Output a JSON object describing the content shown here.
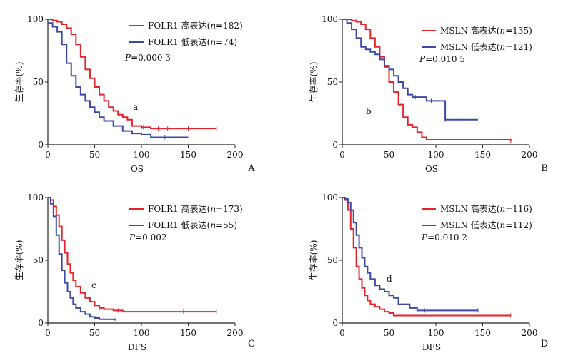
{
  "figure": {
    "colors": {
      "high": "#e8222b",
      "low": "#3c4aa6",
      "axis": "#222222"
    }
  },
  "chart_data": [
    {
      "panel": "A",
      "type": "line",
      "xlabel": "OS",
      "ylabel": "生存率(%)",
      "annotation": "a",
      "p_text": "P=0.000 3",
      "p_prefix": "P",
      "p_value": "=0.000 3",
      "xlim": [
        0,
        200
      ],
      "ylim": [
        0,
        100
      ],
      "xticks": [
        0,
        50,
        100,
        150,
        200
      ],
      "yticks": [
        0,
        50,
        100
      ],
      "series": [
        {
          "name": "FOLR1 高表达(n=182)",
          "name_prefix": "FOLR1 高表达(",
          "name_n": "n",
          "name_suffix": "=182)",
          "color": "#e8222b",
          "x": [
            0,
            5,
            10,
            15,
            20,
            25,
            30,
            35,
            40,
            45,
            50,
            55,
            60,
            65,
            70,
            75,
            80,
            85,
            90,
            100,
            110,
            180
          ],
          "y": [
            100,
            99,
            98,
            96,
            93,
            88,
            80,
            70,
            60,
            53,
            46,
            40,
            35,
            30,
            27,
            24,
            22,
            20,
            15,
            14,
            13,
            13
          ],
          "censor_x": [
            92,
            100,
            102,
            118,
            128,
            150,
            180
          ],
          "censor_y": [
            15,
            14,
            14,
            13,
            13,
            13,
            13
          ]
        },
        {
          "name": "FOLR1 低表达(n=74)",
          "name_prefix": "FOLR1 低表达(",
          "name_n": "n",
          "name_suffix": "=74)",
          "color": "#3c4aa6",
          "x": [
            0,
            5,
            10,
            15,
            20,
            25,
            30,
            35,
            40,
            45,
            50,
            55,
            60,
            70,
            80,
            90,
            100,
            110,
            150
          ],
          "y": [
            97,
            94,
            90,
            80,
            65,
            55,
            46,
            40,
            35,
            30,
            26,
            22,
            19,
            15,
            11,
            9,
            8,
            6,
            6
          ],
          "censor_x": [
            125
          ],
          "censor_y": [
            6
          ]
        }
      ]
    },
    {
      "panel": "B",
      "type": "line",
      "xlabel": "OS",
      "ylabel": "生存率(%)",
      "annotation": "b",
      "p_text": "P=0.010 5",
      "p_prefix": "P",
      "p_value": "=0.010 5",
      "xlim": [
        0,
        200
      ],
      "ylim": [
        0,
        100
      ],
      "xticks": [
        0,
        50,
        100,
        150,
        200
      ],
      "yticks": [
        0,
        50,
        100
      ],
      "series": [
        {
          "name": "MSLN 高表达(n=135)",
          "name_prefix": "MSLN 高表达(",
          "name_n": "n",
          "name_suffix": "=135)",
          "color": "#e8222b",
          "x": [
            0,
            5,
            10,
            15,
            20,
            25,
            30,
            35,
            40,
            45,
            50,
            55,
            60,
            65,
            70,
            75,
            80,
            85,
            90,
            180
          ],
          "y": [
            100,
            100,
            99,
            98,
            96,
            92,
            85,
            78,
            70,
            62,
            50,
            42,
            32,
            22,
            16,
            14,
            10,
            6,
            4,
            3
          ],
          "censor_x": [
            180
          ],
          "censor_y": [
            3
          ]
        },
        {
          "name": "MSLN 低表达(n=121)",
          "name_prefix": "MSLN 低表达(",
          "name_n": "n",
          "name_suffix": "=121)",
          "color": "#3c4aa6",
          "x": [
            0,
            5,
            10,
            15,
            20,
            25,
            30,
            35,
            40,
            45,
            50,
            55,
            60,
            65,
            70,
            75,
            80,
            90,
            100,
            110,
            145
          ],
          "y": [
            100,
            97,
            92,
            85,
            78,
            76,
            74,
            72,
            68,
            63,
            60,
            55,
            50,
            45,
            40,
            38,
            38,
            35,
            35,
            20,
            20
          ],
          "censor_x": [
            78,
            95,
            110,
            130
          ],
          "censor_y": [
            38,
            35,
            20,
            20
          ]
        }
      ]
    },
    {
      "panel": "C",
      "type": "line",
      "xlabel": "DFS",
      "ylabel": "生存率(%)",
      "annotation": "c",
      "p_text": "P=0.002",
      "p_prefix": "P",
      "p_value": "=0.002",
      "xlim": [
        0,
        200
      ],
      "ylim": [
        0,
        100
      ],
      "xticks": [
        0,
        50,
        100,
        150,
        200
      ],
      "yticks": [
        0,
        50,
        100
      ],
      "series": [
        {
          "name": "FOLR1 高表达(n=173)",
          "name_prefix": "FOLR1 高表达(",
          "name_n": "n",
          "name_suffix": "=173)",
          "color": "#e8222b",
          "x": [
            0,
            3,
            6,
            9,
            12,
            15,
            18,
            21,
            24,
            27,
            30,
            35,
            40,
            45,
            50,
            55,
            60,
            70,
            80,
            180
          ],
          "y": [
            100,
            98,
            93,
            86,
            77,
            66,
            56,
            47,
            40,
            34,
            29,
            24,
            20,
            17,
            14,
            12,
            11,
            10,
            9,
            9
          ],
          "censor_x": [
            55,
            75,
            145,
            180
          ],
          "censor_y": [
            12,
            10,
            9,
            9
          ]
        },
        {
          "name": "FOLR1 低表达(n=55)",
          "name_prefix": "FOLR1 低表达(",
          "name_n": "n",
          "name_suffix": "=55)",
          "color": "#3c4aa6",
          "x": [
            0,
            3,
            6,
            9,
            12,
            15,
            18,
            21,
            24,
            27,
            30,
            35,
            40,
            45,
            50,
            55,
            60,
            72
          ],
          "y": [
            100,
            95,
            85,
            70,
            55,
            42,
            32,
            25,
            20,
            15,
            12,
            9,
            7,
            5,
            4,
            3,
            3,
            2
          ],
          "censor_x": [],
          "censor_y": []
        }
      ]
    },
    {
      "panel": "D",
      "type": "line",
      "xlabel": "DFS",
      "ylabel": "生存率(%)",
      "annotation": "d",
      "p_text": "P=0.010 2",
      "p_prefix": "P",
      "p_value": "=0.010 2",
      "xlim": [
        0,
        200
      ],
      "ylim": [
        0,
        100
      ],
      "xticks": [
        0,
        50,
        100,
        150,
        200
      ],
      "yticks": [
        0,
        50,
        100
      ],
      "series": [
        {
          "name": "MSLN 高表达(n=116)",
          "name_prefix": "MSLN 高表达(",
          "name_n": "n",
          "name_suffix": "=116)",
          "color": "#e8222b",
          "x": [
            0,
            3,
            6,
            9,
            12,
            15,
            18,
            21,
            24,
            27,
            30,
            35,
            40,
            45,
            50,
            55,
            60,
            180
          ],
          "y": [
            100,
            98,
            90,
            75,
            60,
            45,
            35,
            28,
            22,
            18,
            15,
            13,
            11,
            9,
            8,
            6,
            6,
            6
          ],
          "censor_x": [
            180
          ],
          "censor_y": [
            6
          ]
        },
        {
          "name": "MSLN 低表达(n=112)",
          "name_prefix": "MSLN 低表达(",
          "name_n": "n",
          "name_suffix": "=112)",
          "color": "#3c4aa6",
          "x": [
            0,
            3,
            6,
            9,
            12,
            15,
            18,
            21,
            24,
            27,
            30,
            35,
            40,
            45,
            50,
            55,
            60,
            72,
            80,
            145
          ],
          "y": [
            100,
            99,
            96,
            90,
            80,
            70,
            60,
            52,
            45,
            40,
            35,
            30,
            27,
            25,
            22,
            20,
            15,
            12,
            10,
            10
          ],
          "censor_x": [
            88,
            145
          ],
          "censor_y": [
            10,
            10
          ]
        }
      ]
    }
  ]
}
